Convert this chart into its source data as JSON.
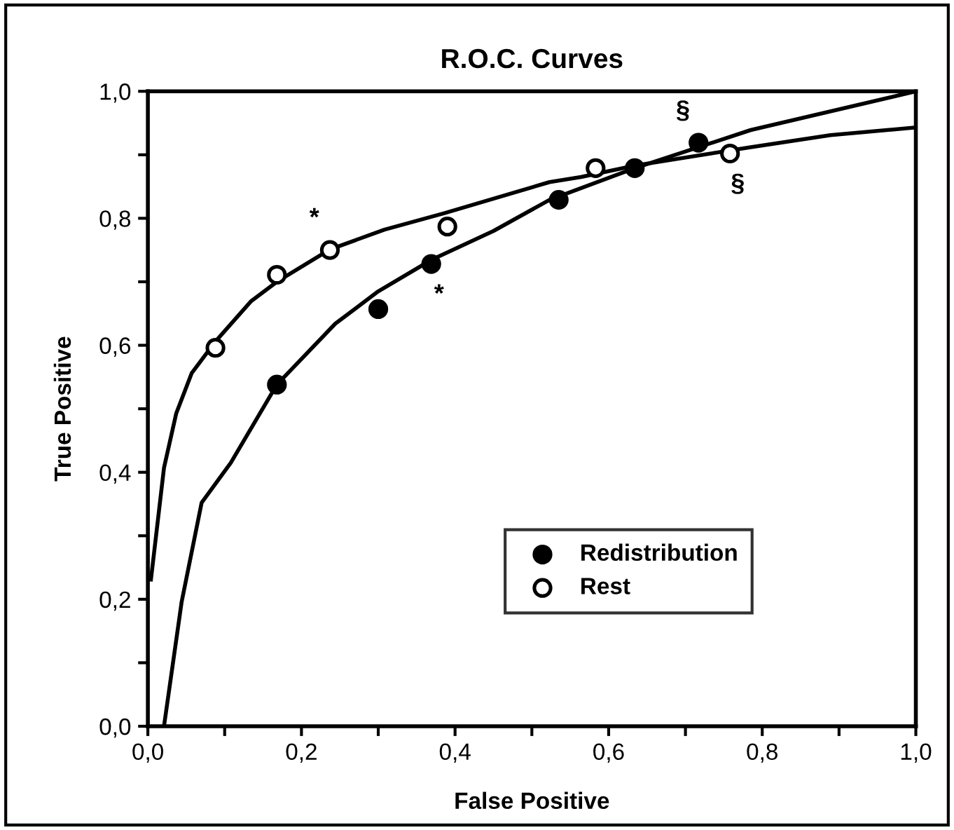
{
  "chart_data": {
    "type": "scatter",
    "title": "R.O.C. Curves",
    "xlabel": "False Positive",
    "ylabel": "True Positive",
    "xlim": [
      0,
      1
    ],
    "ylim": [
      0,
      1
    ],
    "xticks": [
      {
        "value": 0,
        "label": "0,0"
      },
      {
        "value": 0.1,
        "label": null
      },
      {
        "value": 0.2,
        "label": "0,2"
      },
      {
        "value": 0.3,
        "label": null
      },
      {
        "value": 0.4,
        "label": "0,4"
      },
      {
        "value": 0.5,
        "label": null
      },
      {
        "value": 0.6,
        "label": "0,6"
      },
      {
        "value": 0.7,
        "label": null
      },
      {
        "value": 0.8,
        "label": "0,8"
      },
      {
        "value": 0.9,
        "label": null
      },
      {
        "value": 1,
        "label": "1,0"
      }
    ],
    "yticks": [
      {
        "value": 0,
        "label": "0,0"
      },
      {
        "value": 0.1,
        "label": null
      },
      {
        "value": 0.2,
        "label": "0,2"
      },
      {
        "value": 0.3,
        "label": null
      },
      {
        "value": 0.4,
        "label": "0,4"
      },
      {
        "value": 0.5,
        "label": null
      },
      {
        "value": 0.6,
        "label": "0,6"
      },
      {
        "value": 0.7,
        "label": null
      },
      {
        "value": 0.8,
        "label": "0,8"
      },
      {
        "value": 0.9,
        "label": null
      },
      {
        "value": 1,
        "label": "1,0"
      }
    ],
    "grid": false,
    "legend": "bottom right",
    "series": [
      {
        "name": "Redistribution",
        "marker": "circle",
        "color": "#000000",
        "x": [
          0.168,
          0.3,
          0.369,
          0.535,
          0.634,
          0.717
        ],
        "values": [
          0.538,
          0.657,
          0.728,
          0.829,
          0.879,
          0.919
        ]
      },
      {
        "name": "Rest",
        "marker": "circle",
        "color": "#ffffff",
        "x": [
          0.088,
          0.168,
          0.237,
          0.39,
          0.583,
          0.758
        ],
        "values": [
          0.596,
          0.711,
          0.75,
          0.787,
          0.879,
          0.902
        ]
      },
      {
        "type": "line",
        "color": "#000000",
        "line_style": "solid",
        "x": [
          0.021,
          0.044,
          0.07,
          0.108,
          0.168,
          0.244,
          0.3,
          0.37,
          0.45,
          0.523,
          0.634,
          0.785,
          1.0
        ],
        "values": [
          0,
          0.196,
          0.352,
          0.415,
          0.538,
          0.634,
          0.685,
          0.735,
          0.78,
          0.829,
          0.879,
          0.939,
          1.0
        ]
      },
      {
        "type": "line",
        "color": "#000000",
        "line_style": "solid",
        "x": [
          0.004,
          0.021,
          0.037,
          0.057,
          0.088,
          0.134,
          0.168,
          0.237,
          0.308,
          0.386,
          0.523,
          0.564,
          0.634,
          0.785,
          0.889,
          1.0
        ],
        "values": [
          0.231,
          0.407,
          0.493,
          0.556,
          0.606,
          0.669,
          0.7,
          0.751,
          0.782,
          0.808,
          0.857,
          0.865,
          0.883,
          0.912,
          0.931,
          0.943
        ]
      }
    ],
    "annotations": [
      {
        "text": "*",
        "x": 0.237,
        "y": 0.75
      },
      {
        "text": "*",
        "x": 0.369,
        "y": 0.728
      },
      {
        "text": "§",
        "x": 0.717,
        "y": 0.919
      },
      {
        "text": "§",
        "x": 0.758,
        "y": 0.902
      }
    ]
  }
}
